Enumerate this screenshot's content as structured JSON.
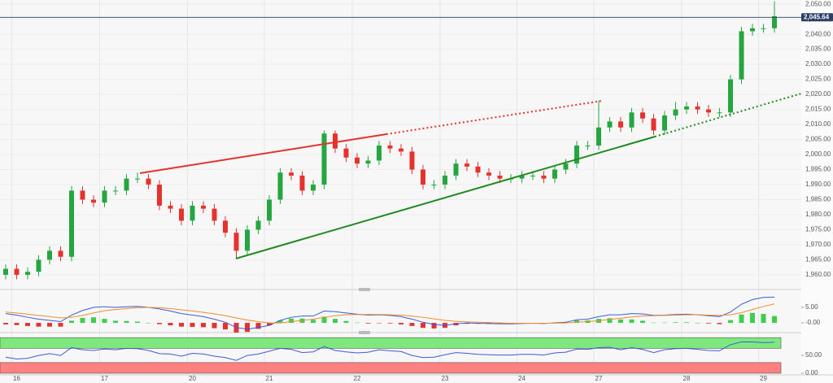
{
  "chart_data": [
    {
      "type": "candlestick",
      "categories": [
        null,
        "16",
        null,
        null,
        null,
        null,
        null,
        null,
        null,
        "17",
        null,
        null,
        null,
        null,
        null,
        null,
        null,
        "20",
        null,
        null,
        null,
        null,
        null,
        null,
        "21",
        null,
        null,
        null,
        null,
        null,
        null,
        null,
        "22",
        null,
        null,
        null,
        null,
        null,
        null,
        null,
        "23",
        null,
        null,
        null,
        null,
        null,
        null,
        "24",
        null,
        null,
        null,
        null,
        null,
        null,
        "27",
        null,
        null,
        null,
        null,
        null,
        null,
        null,
        "28",
        null,
        null,
        null,
        null,
        null,
        null,
        "29",
        null
      ],
      "open": [
        1960,
        1962,
        1960,
        1961,
        1965,
        1968,
        1966,
        1988,
        1985,
        1984,
        1988,
        1988,
        1992,
        1992,
        1990,
        1983,
        1982,
        1978,
        1983,
        1982,
        1978,
        1974,
        1968,
        1975,
        1978,
        1985,
        1994,
        1993,
        1988,
        1990,
        2007,
        2002,
        1999,
        1997,
        1998,
        2003,
        2002,
        2001,
        1995,
        1990,
        1990,
        1993,
        1997,
        1996,
        1994,
        1993,
        1992,
        1992,
        1993,
        1993,
        1992,
        1995,
        1997,
        2003,
        2003,
        2009,
        2011,
        2009,
        2014,
        2012,
        2008,
        2013,
        2015,
        2016,
        2015,
        2014,
        2014,
        2025,
        2041,
        2042,
        2042
      ],
      "high": [
        1963.5,
        1963.5,
        1962.5,
        1966.5,
        1969.5,
        1969.5,
        1989.5,
        1989.5,
        1986.5,
        1989.5,
        1989.5,
        1993.5,
        1994,
        1993.5,
        1991.5,
        1984.5,
        1983.5,
        1984.5,
        1984.5,
        1983.5,
        1979.5,
        1975.5,
        1976.5,
        1979.5,
        1986.5,
        1995.5,
        1995.5,
        1994.5,
        1991.5,
        2008,
        2008,
        2003.5,
        2000.5,
        1999.5,
        2004.5,
        2004.5,
        2003.5,
        2002.5,
        1996.5,
        1991.5,
        1994.5,
        1998.5,
        1998.5,
        1997.5,
        1995.5,
        1994.5,
        1993.5,
        1994.5,
        1994.5,
        1994.5,
        1996.5,
        1998.5,
        2004.5,
        2004.5,
        2018,
        2012.5,
        2012.5,
        2015.5,
        2015.5,
        2013.5,
        2014.5,
        2017.5,
        2017.5,
        2017.5,
        2016.5,
        2015.5,
        2026.5,
        2042.5,
        2043.5,
        2043.5,
        2051
      ],
      "low": [
        1958.5,
        1958.5,
        1958.5,
        1959.5,
        1963.5,
        1964.5,
        1964.5,
        1983.5,
        1982.5,
        1982.5,
        1986.5,
        1986.5,
        1990.5,
        1988.5,
        1981.5,
        1980.5,
        1976.5,
        1976.5,
        1980.5,
        1976.5,
        1972.5,
        1965.5,
        1966.5,
        1973.5,
        1976.5,
        1983.5,
        1991.5,
        1986.5,
        1986.5,
        1988.5,
        2000.5,
        1997.5,
        1995.5,
        1995.5,
        1996.5,
        2000.5,
        1999.5,
        1993.5,
        1988.5,
        1988.5,
        1988.5,
        1991.5,
        1994.5,
        1992.5,
        1991.5,
        1990.5,
        1990.5,
        1990.5,
        1991.5,
        1990.5,
        1990.5,
        1993.5,
        1995.5,
        2001.5,
        2001.5,
        2007.5,
        2007.5,
        2007.5,
        2010.5,
        2006.5,
        2006.5,
        2011.5,
        2013.5,
        2013.5,
        2012.5,
        2012.5,
        2012.5,
        2023.5,
        2039.5,
        2040.5,
        2040.5
      ],
      "close": [
        1962,
        1960,
        1961,
        1965,
        1968,
        1966,
        1988,
        1985,
        1984,
        1988,
        1988,
        1992,
        1992,
        1990,
        1983,
        1982,
        1978,
        1983,
        1982,
        1978,
        1974,
        1968,
        1975,
        1978,
        1985,
        1994,
        1993,
        1988,
        1990,
        2007,
        2002,
        1999,
        1997,
        1998,
        2003,
        2002,
        2001,
        1995,
        1990,
        1990,
        1993,
        1997,
        1996,
        1994,
        1993,
        1992,
        1992,
        1993,
        1993,
        1992,
        1995,
        1997,
        2003,
        2003,
        2009,
        2011,
        2009,
        2014,
        2012,
        2008,
        2013,
        2015,
        2016,
        2015,
        2014,
        2014,
        2025,
        2041,
        2042,
        2042,
        2046
      ],
      "up_color": "#26a641",
      "down_color": "#e5322d",
      "last_price": {
        "value": 2045.64,
        "label": "2,045.64"
      },
      "last_price_color": "#2b3f66",
      "ylim": [
        1956.2,
        2051.4
      ],
      "yticks": [
        {
          "value": 1960,
          "label": "1,960.00"
        },
        {
          "value": 1965,
          "label": "1,965.00"
        },
        {
          "value": 1970,
          "label": "1,970.00"
        },
        {
          "value": 1975,
          "label": "1,975.00"
        },
        {
          "value": 1980,
          "label": "1,980.00"
        },
        {
          "value": 1985,
          "label": "1,985.00"
        },
        {
          "value": 1990,
          "label": "1,990.00"
        },
        {
          "value": 1995,
          "label": "1,995.00"
        },
        {
          "value": 2000,
          "label": "2,000.00"
        },
        {
          "value": 2005,
          "label": "2,005.00"
        },
        {
          "value": 2010,
          "label": "2,010.00"
        },
        {
          "value": 2015,
          "label": "2,015.00"
        },
        {
          "value": 2020,
          "label": "2,020.00"
        },
        {
          "value": 2025,
          "label": "2,025.00"
        },
        {
          "value": 2030,
          "label": "2,030.00"
        },
        {
          "value": 2035,
          "label": "2,035.00"
        },
        {
          "value": 2040,
          "label": "2,040.00"
        },
        {
          "value": 2045,
          "label": "2,045.00"
        },
        {
          "value": 2050,
          "label": "2,050.00"
        }
      ],
      "grid": true
    },
    {
      "type": "macd",
      "series": [
        {
          "color": "#3b5bdb",
          "values": [
            3,
            2.5,
            1.8,
            1.2,
            0.8,
            0.4,
            2.5,
            4,
            5,
            5.2,
            5,
            5.2,
            5.3,
            5,
            4.5,
            3.8,
            3,
            2.5,
            2,
            1.2,
            0.2,
            -1.5,
            -2,
            -1.5,
            -0.8,
            0.8,
            1.8,
            2.2,
            2.2,
            3.8,
            3.6,
            3.2,
            2.8,
            2.5,
            2.6,
            2.4,
            2,
            1.2,
            0.2,
            -0.5,
            -0.8,
            -0.3,
            0,
            -0.1,
            -0.2,
            -0.3,
            -0.3,
            -0.2,
            -0.1,
            -0.2,
            0,
            0.2,
            1,
            1.2,
            2,
            2.6,
            2.6,
            3,
            2.9,
            2.4,
            2.5,
            2.7,
            2.8,
            2.6,
            2.3,
            2,
            3.5,
            6,
            7.5,
            8.2,
            8.3
          ]
        },
        {
          "color": "#f08c2a",
          "values": [
            3.5,
            3.2,
            2.8,
            2.4,
            2,
            1.6,
            1.8,
            2.4,
            3.2,
            3.9,
            4.3,
            4.6,
            4.9,
            5,
            4.9,
            4.6,
            4.2,
            3.8,
            3.4,
            2.9,
            2.3,
            1.6,
            0.9,
            0.4,
            0,
            0,
            0.4,
            0.8,
            1.2,
            1.8,
            2.3,
            2.6,
            2.7,
            2.7,
            2.7,
            2.6,
            2.5,
            2.2,
            1.8,
            1.3,
            0.8,
            0.5,
            0.3,
            0.2,
            0.1,
            0,
            -0.1,
            -0.1,
            -0.1,
            -0.1,
            -0.1,
            0,
            0.2,
            0.4,
            0.7,
            1.1,
            1.5,
            1.9,
            2.2,
            2.3,
            2.4,
            2.5,
            2.6,
            2.6,
            2.5,
            2.4,
            2.6,
            3.3,
            4.3,
            5.3,
            6.1
          ]
        }
      ],
      "histogram": {
        "up_color": "#3ccf4e",
        "down_color": "#e5322d",
        "values": [
          -0.5,
          -0.7,
          -1,
          -1.2,
          -1.2,
          -1.2,
          0.7,
          1.6,
          1.8,
          1.3,
          0.7,
          0.6,
          0.4,
          0,
          -0.4,
          -0.8,
          -1.2,
          -1.3,
          -1.4,
          -1.7,
          -2.1,
          -3.1,
          -2.9,
          -1.9,
          -0.8,
          0.8,
          1.4,
          1.4,
          1,
          2,
          1.3,
          0.6,
          0.1,
          -0.2,
          -0.1,
          -0.2,
          -0.5,
          -1,
          -1.6,
          -1.8,
          -1.6,
          -0.8,
          -0.3,
          -0.3,
          -0.3,
          -0.3,
          -0.2,
          -0.1,
          0,
          -0.1,
          0.1,
          0.2,
          0.8,
          0.8,
          1.3,
          1.5,
          1.1,
          1.1,
          0.7,
          0.1,
          0.1,
          0.2,
          0.2,
          0,
          -0.2,
          -0.4,
          0.9,
          2.7,
          3.2,
          2.9,
          2.2
        ]
      },
      "ylim": [
        -2.6,
        9.7
      ],
      "yticks": [
        {
          "value": 5,
          "label": "5.00"
        },
        {
          "value": 0,
          "label": "-0.00"
        }
      ]
    },
    {
      "type": "rsi",
      "series": [
        {
          "color": "#3b5bdb",
          "values": [
            45,
            40,
            42,
            50,
            55,
            50,
            72,
            66,
            64,
            68,
            66,
            70,
            69,
            64,
            55,
            54,
            48,
            56,
            54,
            48,
            44,
            36,
            50,
            54,
            62,
            70,
            67,
            58,
            60,
            75,
            64,
            60,
            57,
            59,
            66,
            63,
            61,
            50,
            44,
            45,
            52,
            58,
            56,
            53,
            52,
            51,
            51,
            53,
            53,
            51,
            57,
            59,
            68,
            67,
            72,
            73,
            66,
            72,
            67,
            58,
            66,
            69,
            70,
            67,
            64,
            63,
            80,
            88,
            88,
            86,
            87
          ]
        }
      ],
      "zones": [
        {
          "from": 70,
          "to": 100,
          "color": "#7ee87e"
        },
        {
          "from": 0,
          "to": 30,
          "color": "#ff8080"
        }
      ],
      "ylim": [
        0,
        105
      ],
      "yticks": [
        {
          "value": 50,
          "label": "50.00"
        },
        {
          "value": 0,
          "label": "0.00"
        }
      ]
    }
  ]
}
